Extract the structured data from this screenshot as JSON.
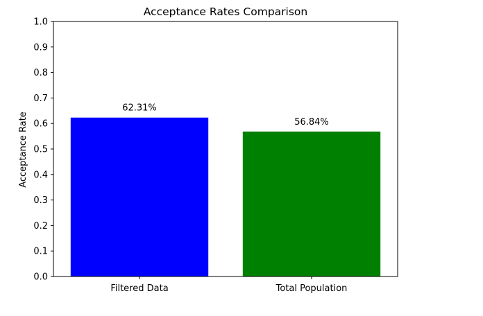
{
  "chart_data": {
    "type": "bar",
    "title": "Acceptance Rates Comparison",
    "xlabel": "",
    "ylabel": "Acceptance Rate",
    "categories": [
      "Filtered Data",
      "Total Population"
    ],
    "values": [
      0.6231,
      0.5684
    ],
    "data_labels": [
      "62.31%",
      "56.84%"
    ],
    "colors": [
      "#0000ff",
      "#008000"
    ],
    "ylim": [
      0,
      1.0
    ],
    "yticks": [
      "0.0",
      "0.1",
      "0.2",
      "0.3",
      "0.4",
      "0.5",
      "0.6",
      "0.7",
      "0.8",
      "0.9",
      "1.0"
    ],
    "grid": false,
    "legend": "none"
  }
}
